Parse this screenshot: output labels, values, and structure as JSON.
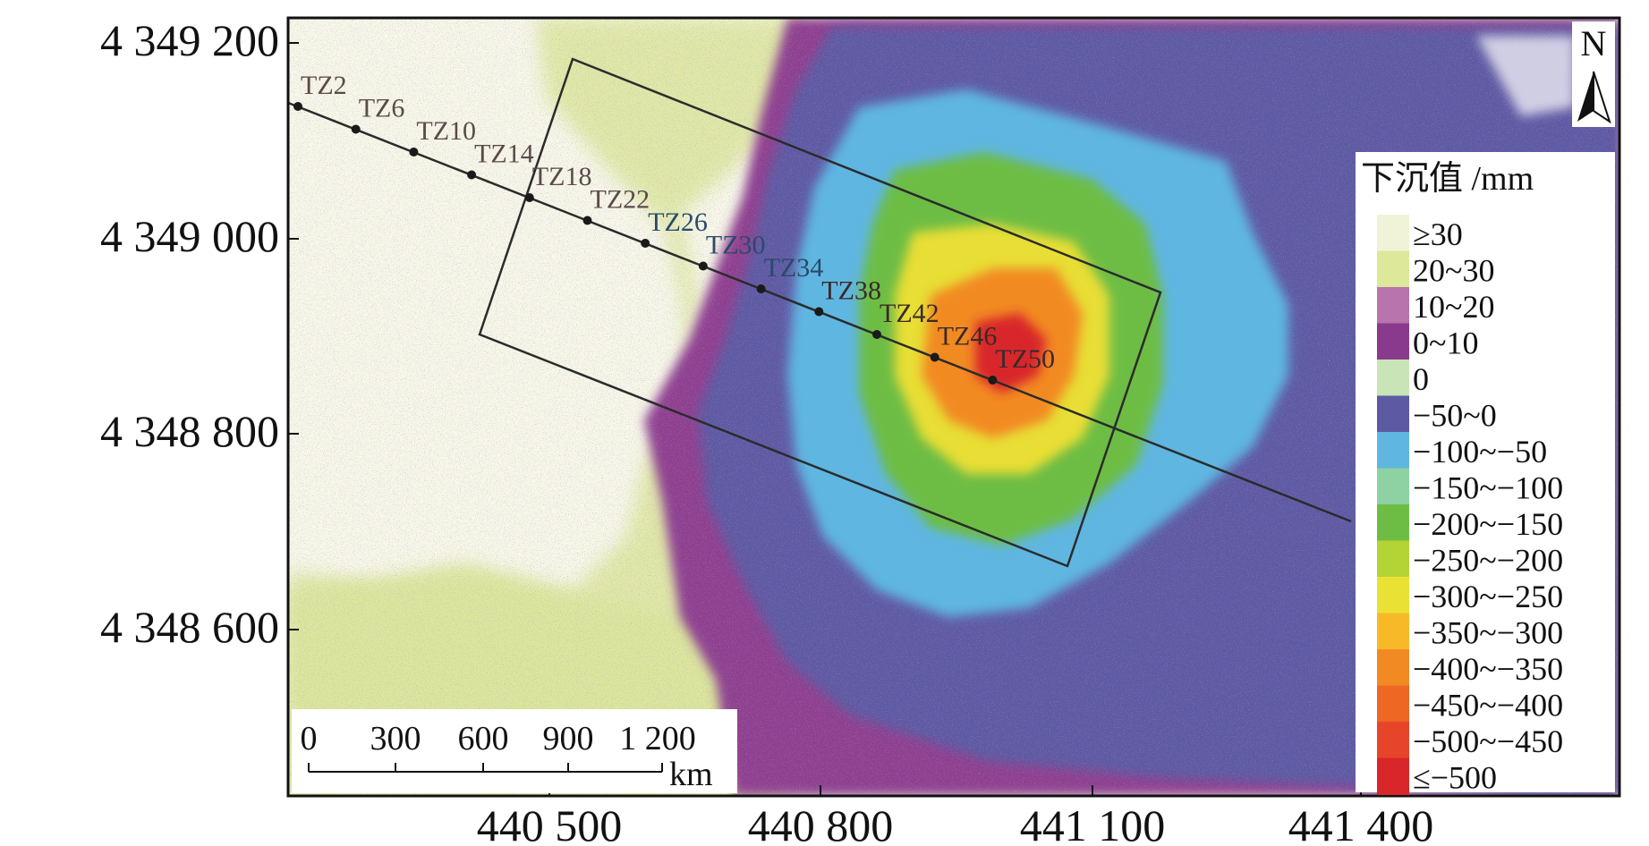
{
  "map": {
    "y_ticks": [
      "4 349 200",
      "4 349 000",
      "4 348 800",
      "4 348 600"
    ],
    "x_ticks": [
      "440 500",
      "440 800",
      "441 100",
      "441 400"
    ]
  },
  "profile": {
    "points": [
      "TZ2",
      "TZ6",
      "TZ10",
      "TZ14",
      "TZ18",
      "TZ22",
      "TZ26",
      "TZ30",
      "TZ34",
      "TZ38",
      "TZ42",
      "TZ46",
      "TZ50"
    ]
  },
  "scale_bar": {
    "labels": [
      "0",
      "300",
      "600",
      "900",
      "1 200"
    ],
    "unit": "km"
  },
  "north_arrow": {
    "letter": "N"
  },
  "legend": {
    "title": "下沉值 /mm",
    "classes": [
      {
        "label": "≥30",
        "color": "#f0f3d8"
      },
      {
        "label": "20~30",
        "color": "#dde89a"
      },
      {
        "label": "10~20",
        "color": "#b874ad"
      },
      {
        "label": "0~10",
        "color": "#8a3a8c"
      },
      {
        "label": "0",
        "color": "#c9e4b6"
      },
      {
        "label": "−50~0",
        "color": "#5b5aa3"
      },
      {
        "label": "−100~−50",
        "color": "#5fb6e1"
      },
      {
        "label": "−150~−100",
        "color": "#8ed1a3"
      },
      {
        "label": "−200~−150",
        "color": "#6dbd45"
      },
      {
        "label": "−250~−200",
        "color": "#b4d335"
      },
      {
        "label": "−300~−250",
        "color": "#e9e235"
      },
      {
        "label": "−350~−300",
        "color": "#f7b928"
      },
      {
        "label": "−400~−350",
        "color": "#f28a24"
      },
      {
        "label": "−450~−400",
        "color": "#ee6723"
      },
      {
        "label": "−500~−450",
        "color": "#e6452a"
      },
      {
        "label": "≤−500",
        "color": "#d8262a"
      }
    ]
  },
  "colors": {
    "stable_area": "#f6f8e8",
    "stable_green": "#dbe79c",
    "purple_fringe": "#8d3f8f",
    "blue_zone": "#5b5aa3",
    "cyan_zone": "#5fb6e1",
    "green_zone": "#6dbd45",
    "yellow_zone": "#e8de36",
    "orange_zone": "#f28a24",
    "red_zone": "#d8262a"
  }
}
